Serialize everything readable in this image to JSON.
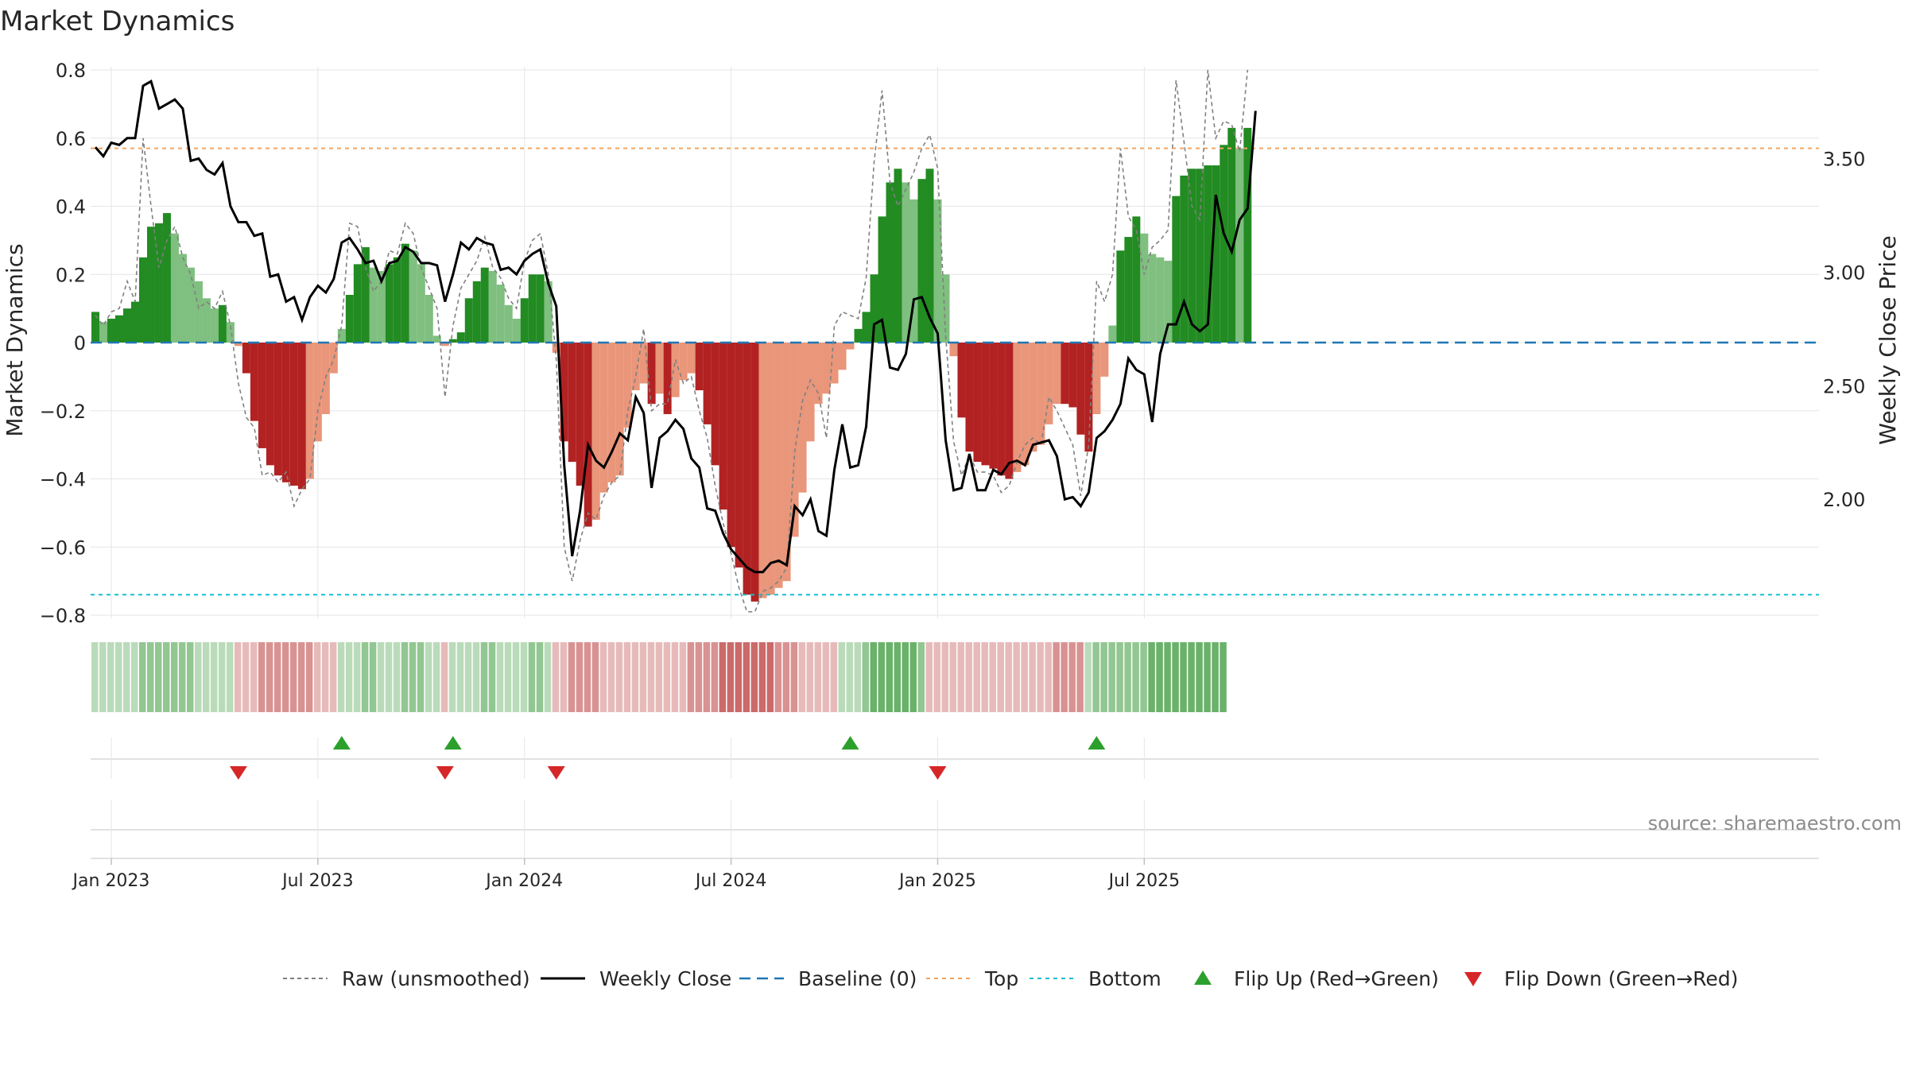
{
  "chart_data": {
    "type": "bar",
    "title": "Market Dynamics",
    "ylabel_left": "Market Dynamics",
    "ylabel_right": "Weekly Close Price",
    "source": "source: sharemaestro.com",
    "ylim_left": [
      -0.8,
      0.8
    ],
    "ylim_right": [
      1.49,
      3.89
    ],
    "yticks_left": [
      {
        "v": 0.8,
        "label": "0.8"
      },
      {
        "v": 0.6,
        "label": "0.6"
      },
      {
        "v": 0.4,
        "label": "0.4"
      },
      {
        "v": 0.2,
        "label": "0.2"
      },
      {
        "v": 0,
        "label": "0"
      },
      {
        "v": -0.2,
        "label": "−0.2"
      },
      {
        "v": -0.4,
        "label": "−0.4"
      },
      {
        "v": -0.6,
        "label": "−0.6"
      },
      {
        "v": -0.8,
        "label": "−0.8"
      }
    ],
    "yticks_right": [
      {
        "v": 3.5,
        "label": "3.50"
      },
      {
        "v": 3.0,
        "label": "3.00"
      },
      {
        "v": 2.5,
        "label": "2.50"
      },
      {
        "v": 2.0,
        "label": "2.00"
      }
    ],
    "xticks": [
      {
        "week": 2,
        "label": "Jan 2023"
      },
      {
        "week": 28,
        "label": "Jul 2023"
      },
      {
        "week": 54,
        "label": "Jan 2024"
      },
      {
        "week": 80,
        "label": "Jul 2024"
      },
      {
        "week": 106,
        "label": "Jan 2025"
      },
      {
        "week": 132,
        "label": "Jul 2025"
      }
    ],
    "top_line": 0.57,
    "bottom_line": -0.74,
    "baseline": 0,
    "bars": [
      0.09,
      0.06,
      0.07,
      0.08,
      0.1,
      0.12,
      0.25,
      0.34,
      0.35,
      0.38,
      0.32,
      0.26,
      0.22,
      0.18,
      0.13,
      0.1,
      0.11,
      0.06,
      -0.01,
      -0.09,
      -0.23,
      -0.31,
      -0.36,
      -0.39,
      -0.41,
      -0.42,
      -0.43,
      -0.4,
      -0.29,
      -0.21,
      -0.09,
      0.04,
      0.14,
      0.23,
      0.28,
      0.22,
      0.21,
      0.23,
      0.25,
      0.29,
      0.27,
      0.23,
      0.14,
      0.02,
      -0.01,
      0.01,
      0.03,
      0.13,
      0.18,
      0.22,
      0.21,
      0.17,
      0.11,
      0.07,
      0.13,
      0.2,
      0.2,
      0.18,
      -0.03,
      -0.29,
      -0.35,
      -0.42,
      -0.54,
      -0.52,
      -0.44,
      -0.41,
      -0.39,
      -0.25,
      -0.14,
      -0.12,
      -0.18,
      -0.15,
      -0.21,
      -0.16,
      -0.11,
      -0.09,
      -0.14,
      -0.24,
      -0.36,
      -0.49,
      -0.6,
      -0.66,
      -0.74,
      -0.76,
      -0.75,
      -0.74,
      -0.72,
      -0.7,
      -0.57,
      -0.44,
      -0.29,
      -0.18,
      -0.15,
      -0.12,
      -0.08,
      -0.02,
      0.04,
      0.09,
      0.2,
      0.37,
      0.47,
      0.51,
      0.47,
      0.42,
      0.48,
      0.51,
      0.42,
      0.2,
      -0.04,
      -0.22,
      -0.32,
      -0.35,
      -0.36,
      -0.37,
      -0.39,
      -0.4,
      -0.38,
      -0.36,
      -0.32,
      -0.3,
      -0.24,
      -0.18,
      -0.18,
      -0.19,
      -0.27,
      -0.32,
      -0.21,
      -0.1,
      0.05,
      0.27,
      0.31,
      0.37,
      0.32,
      0.26,
      0.25,
      0.24,
      0.43,
      0.49,
      0.51,
      0.51,
      0.52,
      0.52,
      0.58,
      0.63,
      0.57,
      0.63
    ],
    "raw": [
      0.08,
      0.05,
      0.09,
      0.1,
      0.18,
      0.12,
      0.6,
      0.4,
      0.22,
      0.3,
      0.34,
      0.25,
      0.2,
      0.1,
      0.12,
      0.1,
      0.15,
      0.05,
      -0.12,
      -0.22,
      -0.25,
      -0.39,
      -0.38,
      -0.41,
      -0.38,
      -0.48,
      -0.43,
      -0.4,
      -0.2,
      -0.1,
      -0.05,
      0.05,
      0.35,
      0.34,
      0.22,
      0.15,
      0.18,
      0.27,
      0.26,
      0.35,
      0.32,
      0.22,
      0.16,
      0.1,
      -0.16,
      0.05,
      0.16,
      0.2,
      0.24,
      0.31,
      0.22,
      0.19,
      0.13,
      0.1,
      0.24,
      0.3,
      0.32,
      0.2,
      -0.05,
      -0.6,
      -0.7,
      -0.58,
      -0.5,
      -0.52,
      -0.45,
      -0.41,
      -0.39,
      -0.2,
      -0.1,
      0.04,
      -0.2,
      -0.18,
      -0.18,
      -0.05,
      -0.12,
      -0.1,
      -0.2,
      -0.28,
      -0.42,
      -0.53,
      -0.62,
      -0.72,
      -0.79,
      -0.79,
      -0.73,
      -0.72,
      -0.7,
      -0.66,
      -0.32,
      -0.17,
      -0.11,
      -0.15,
      -0.28,
      0.05,
      0.09,
      0.08,
      0.07,
      0.19,
      0.53,
      0.74,
      0.47,
      0.4,
      0.45,
      0.5,
      0.57,
      0.61,
      0.51,
      0.02,
      -0.29,
      -0.39,
      -0.33,
      -0.38,
      -0.38,
      -0.39,
      -0.44,
      -0.42,
      -0.35,
      -0.3,
      -0.28,
      -0.3,
      -0.16,
      -0.2,
      -0.25,
      -0.3,
      -0.45,
      -0.3,
      0.18,
      0.12,
      0.2,
      0.57,
      0.37,
      0.33,
      0.2,
      0.28,
      0.3,
      0.33,
      0.77,
      0.59,
      0.4,
      0.36,
      0.8,
      0.6,
      0.65,
      0.64,
      0.56,
      0.8
    ],
    "close": [
      3.55,
      3.51,
      3.57,
      3.56,
      3.59,
      3.59,
      3.82,
      3.84,
      3.72,
      3.74,
      3.76,
      3.72,
      3.49,
      3.5,
      3.45,
      3.43,
      3.48,
      3.29,
      3.22,
      3.22,
      3.16,
      3.17,
      2.98,
      2.99,
      2.87,
      2.89,
      2.79,
      2.89,
      2.94,
      2.91,
      2.97,
      3.13,
      3.15,
      3.1,
      3.04,
      3.05,
      2.96,
      3.04,
      3.05,
      3.11,
      3.09,
      3.04,
      3.04,
      3.03,
      2.87,
      2.99,
      3.13,
      3.1,
      3.15,
      3.13,
      3.12,
      3.01,
      3.02,
      2.99,
      3.05,
      3.08,
      3.1,
      2.95,
      2.85,
      2.15,
      1.75,
      1.95,
      2.24,
      2.17,
      2.14,
      2.21,
      2.29,
      2.26,
      2.45,
      2.38,
      2.05,
      2.27,
      2.3,
      2.35,
      2.31,
      2.18,
      2.14,
      1.96,
      1.95,
      1.85,
      1.78,
      1.74,
      1.7,
      1.68,
      1.68,
      1.72,
      1.73,
      1.71,
      1.97,
      1.93,
      2.0,
      1.86,
      1.84,
      2.13,
      2.33,
      2.14,
      2.15,
      2.32,
      2.77,
      2.79,
      2.58,
      2.57,
      2.64,
      2.88,
      2.89,
      2.8,
      2.73,
      2.26,
      2.04,
      2.05,
      2.2,
      2.04,
      2.04,
      2.13,
      2.11,
      2.16,
      2.17,
      2.15,
      2.24,
      2.25,
      2.26,
      2.19,
      2.0,
      2.01,
      1.97,
      2.03,
      2.27,
      2.3,
      2.35,
      2.42,
      2.62,
      2.57,
      2.55,
      2.34,
      2.64,
      2.77,
      2.77,
      2.87,
      2.77,
      2.74,
      2.77,
      3.34,
      3.17,
      3.09,
      3.23,
      3.28,
      3.71
    ],
    "strip_levels": [
      1,
      1,
      1,
      1,
      1,
      1,
      2,
      2,
      2,
      2,
      2,
      2,
      2,
      1,
      1,
      1,
      1,
      1,
      -1,
      -1,
      -1,
      -2,
      -2,
      -2,
      -2,
      -2,
      -2,
      -2,
      -1,
      -1,
      -1,
      1,
      1,
      1,
      2,
      2,
      1,
      1,
      1,
      2,
      2,
      2,
      1,
      1,
      -1,
      1,
      1,
      1,
      1,
      2,
      2,
      1,
      1,
      1,
      1,
      2,
      2,
      1,
      -1,
      -1,
      -2,
      -2,
      -2,
      -2,
      -1,
      -1,
      -1,
      -1,
      -1,
      -1,
      -1,
      -1,
      -1,
      -1,
      -1,
      -2,
      -2,
      -2,
      -2,
      -3,
      -3,
      -3,
      -3,
      -3,
      -3,
      -3,
      -2,
      -2,
      -2,
      -1,
      -1,
      -1,
      -1,
      -1,
      1,
      1,
      1,
      2,
      3,
      3,
      3,
      3,
      3,
      3,
      2,
      -1,
      -1,
      -1,
      -1,
      -1,
      -1,
      -1,
      -1,
      -1,
      -1,
      -1,
      -1,
      -1,
      -1,
      -1,
      -1,
      -2,
      -2,
      -2,
      -2,
      1,
      2,
      2,
      2,
      2,
      2,
      2,
      2,
      3,
      3,
      3,
      3,
      3,
      3,
      3,
      3,
      3,
      3
    ],
    "flip_up": [
      31,
      45,
      95,
      126
    ],
    "flip_down": [
      18,
      44,
      58,
      106
    ],
    "legend": [
      {
        "key": "raw",
        "label": "Raw (unsmoothed)"
      },
      {
        "key": "close",
        "label": "Weekly Close"
      },
      {
        "key": "baseline",
        "label": "Baseline (0)"
      },
      {
        "key": "top",
        "label": "Top"
      },
      {
        "key": "bottom",
        "label": "Bottom"
      },
      {
        "key": "flip_up",
        "label": "Flip Up (Red→Green)"
      },
      {
        "key": "flip_down",
        "label": "Flip Down (Green→Red)"
      }
    ],
    "grid": true
  },
  "colors": {
    "green_strong": "#228b22",
    "green_light": "#7fbf7f",
    "red_strong": "#b22222",
    "red_light": "#e9967a",
    "raw_line": "#808080",
    "close_line": "#000000",
    "baseline": "#1f77b4",
    "top_line": "#f4a460",
    "bottom_line": "#17becf",
    "flip_up": "#2ca02c",
    "flip_down": "#d62728",
    "grid": "#e6e6e6",
    "text": "#262626",
    "source_text": "#8c8c8c"
  }
}
